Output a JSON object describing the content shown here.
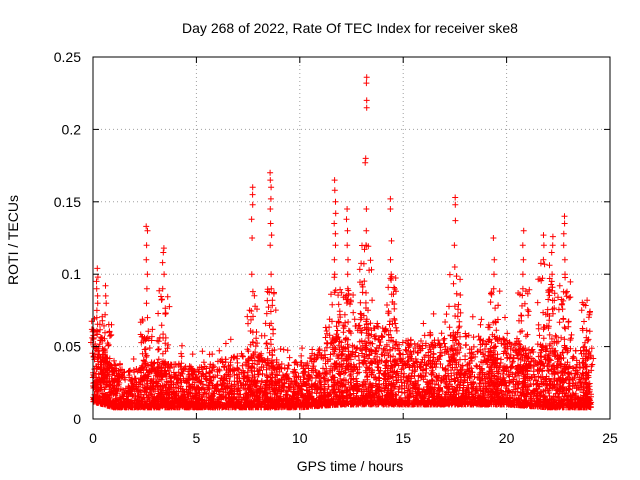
{
  "chart_data": {
    "type": "scatter",
    "title": "Day 268 of 2022, Rate Of TEC Index for receiver ske8",
    "xlabel": "GPS time / hours",
    "ylabel": "ROTI / TECUs",
    "xlim": [
      0,
      25
    ],
    "ylim": [
      0,
      0.25
    ],
    "x_ticks": [
      0,
      5,
      10,
      15,
      20,
      25
    ],
    "x_tick_labels": [
      "0",
      "5",
      "10",
      "15",
      "20",
      "25"
    ],
    "y_ticks": [
      0,
      0.05,
      0.1,
      0.15,
      0.2,
      0.25
    ],
    "y_tick_labels": [
      "0",
      "0.05",
      "0.1",
      "0.15",
      "0.2",
      "0.25"
    ],
    "grid": true,
    "marker": "+",
    "color": "#ff0000",
    "baseline_envelope": {
      "x": [
        0,
        0.5,
        1,
        2,
        3,
        4,
        5,
        6,
        7,
        8,
        9,
        10,
        11,
        12,
        13,
        14,
        15,
        16,
        17,
        18,
        19,
        20,
        21,
        22,
        23,
        24.1
      ],
      "low": [
        0.012,
        0.01,
        0.008,
        0.008,
        0.008,
        0.008,
        0.008,
        0.008,
        0.008,
        0.008,
        0.008,
        0.008,
        0.009,
        0.01,
        0.01,
        0.01,
        0.01,
        0.01,
        0.01,
        0.01,
        0.01,
        0.01,
        0.009,
        0.008,
        0.008,
        0.008
      ],
      "high": [
        0.045,
        0.05,
        0.035,
        0.035,
        0.04,
        0.04,
        0.035,
        0.04,
        0.045,
        0.045,
        0.04,
        0.04,
        0.05,
        0.06,
        0.07,
        0.065,
        0.055,
        0.06,
        0.06,
        0.06,
        0.06,
        0.055,
        0.05,
        0.05,
        0.05,
        0.045
      ]
    },
    "peaks": [
      {
        "x": 0.2,
        "values": [
          0.104,
          0.098,
          0.095,
          0.09,
          0.085,
          0.08,
          0.075,
          0.07
        ]
      },
      {
        "x": 0.6,
        "values": [
          0.092,
          0.085,
          0.08,
          0.072
        ]
      },
      {
        "x": 2.6,
        "values": [
          0.133,
          0.13,
          0.12,
          0.11,
          0.1,
          0.09,
          0.08,
          0.07
        ]
      },
      {
        "x": 3.4,
        "values": [
          0.118,
          0.115,
          0.108,
          0.1,
          0.09
        ]
      },
      {
        "x": 7.7,
        "values": [
          0.16,
          0.155,
          0.148,
          0.138,
          0.125,
          0.1,
          0.088
        ]
      },
      {
        "x": 8.6,
        "values": [
          0.17,
          0.165,
          0.16,
          0.152,
          0.145,
          0.135,
          0.127,
          0.12,
          0.1,
          0.09
        ]
      },
      {
        "x": 11.7,
        "values": [
          0.165,
          0.158,
          0.15,
          0.142,
          0.135,
          0.128,
          0.12,
          0.11,
          0.1
        ]
      },
      {
        "x": 12.3,
        "values": [
          0.145,
          0.138,
          0.13,
          0.12,
          0.11,
          0.1,
          0.09
        ]
      },
      {
        "x": 13.2,
        "values": [
          0.236,
          0.232,
          0.22,
          0.215,
          0.18,
          0.177,
          0.145,
          0.13,
          0.12
        ]
      },
      {
        "x": 14.4,
        "values": [
          0.152,
          0.145,
          0.123,
          0.11,
          0.1
        ]
      },
      {
        "x": 17.5,
        "values": [
          0.153,
          0.148,
          0.137,
          0.12,
          0.105
        ]
      },
      {
        "x": 19.4,
        "values": [
          0.125,
          0.11,
          0.1,
          0.09
        ]
      },
      {
        "x": 20.8,
        "values": [
          0.13,
          0.12,
          0.11,
          0.1,
          0.09
        ]
      },
      {
        "x": 21.8,
        "values": [
          0.127,
          0.12,
          0.11
        ]
      },
      {
        "x": 22.2,
        "values": [
          0.126,
          0.12,
          0.115,
          0.1,
          0.095
        ]
      },
      {
        "x": 22.8,
        "values": [
          0.14,
          0.135,
          0.128,
          0.12,
          0.11,
          0.1
        ]
      },
      {
        "x": 23.9,
        "values": [
          0.082
        ]
      }
    ]
  }
}
